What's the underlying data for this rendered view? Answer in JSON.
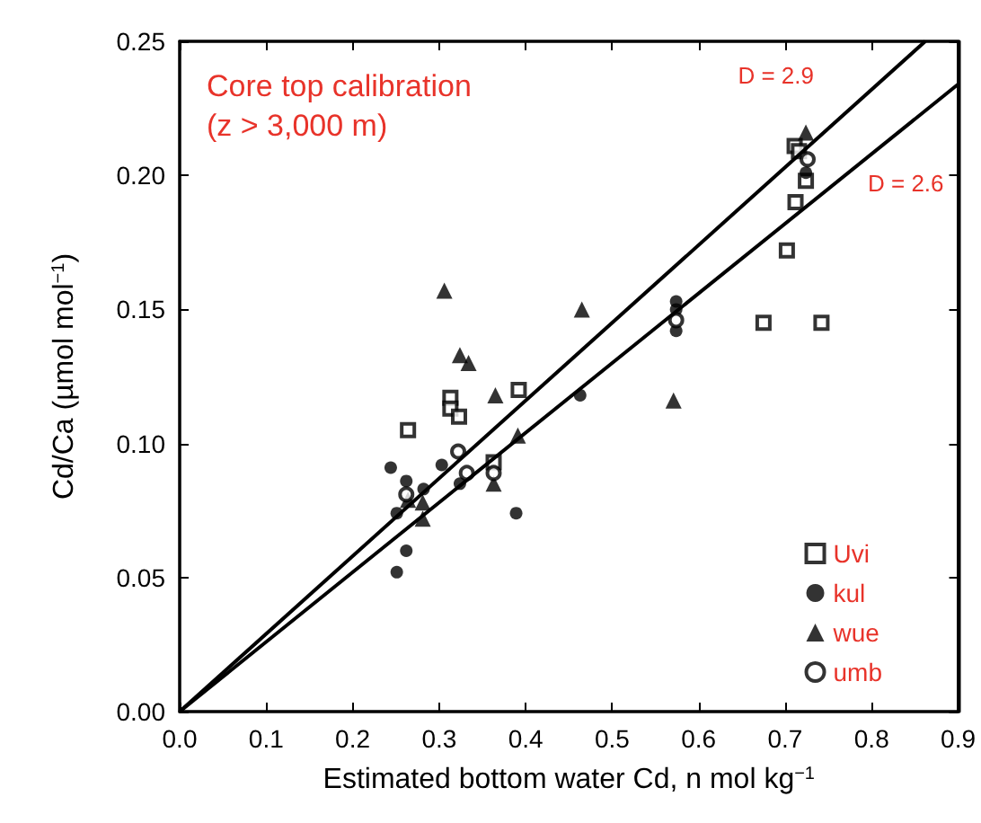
{
  "chart_data": {
    "type": "scatter",
    "title": "Core top calibration\n(z > 3,000 m)",
    "xlabel": "Estimated bottom water Cd, n mol kg$^{−1}$",
    "ylabel": "Cd/Ca (µmol mol$^{−1}$)",
    "xlim": [
      0,
      0.9
    ],
    "xticks": [
      {
        "value": 0,
        "label": "0.0"
      },
      0.1,
      0.2,
      0.3,
      0.4,
      0.5,
      0.6,
      0.7,
      0.8,
      0.9
    ],
    "ylim": [
      0,
      0.25
    ],
    "yticks": [
      {
        "value": 0,
        "label": "0.00"
      },
      0.05,
      {
        "value": 0.1,
        "label": "0.10"
      },
      0.15,
      {
        "value": 0.2,
        "label": "0.20"
      },
      0.25
    ],
    "grid": false,
    "legend": "bottom right",
    "annotations": [
      "D = 2.9",
      "D = 2.6"
    ],
    "series": [
      {
        "name": "Uvi",
        "color": "#000000",
        "marker": "square",
        "x": [
          0.392,
          0.313,
          0.313,
          0.323,
          0.264,
          0.363,
          0.711,
          0.716,
          0.724,
          0.712,
          0.702,
          0.675,
          0.742
        ],
        "values": [
          0.12,
          0.117,
          0.113,
          0.11,
          0.105,
          0.093,
          0.211,
          0.209,
          0.198,
          0.19,
          0.172,
          0.145,
          0.145
        ]
      },
      {
        "name": "kul",
        "color": "#000000",
        "marker": "circle",
        "x": [
          0.463,
          0.574,
          0.574,
          0.574,
          0.244,
          0.303,
          0.324,
          0.262,
          0.282,
          0.251,
          0.389,
          0.262,
          0.251,
          0.724
        ],
        "values": [
          0.118,
          0.153,
          0.15,
          0.142,
          0.091,
          0.092,
          0.085,
          0.086,
          0.083,
          0.074,
          0.074,
          0.06,
          0.052,
          0.201
        ]
      },
      {
        "name": "wue",
        "color": "#000000",
        "marker": "triangle",
        "x": [
          0.306,
          0.465,
          0.324,
          0.334,
          0.365,
          0.571,
          0.391,
          0.363,
          0.264,
          0.281,
          0.281,
          0.724
        ],
        "values": [
          0.157,
          0.15,
          0.133,
          0.13,
          0.118,
          0.116,
          0.103,
          0.085,
          0.079,
          0.078,
          0.072,
          0.216
        ]
      },
      {
        "name": "umb",
        "color": "#000000",
        "marker": "circle",
        "x": [
          0.574,
          0.322,
          0.332,
          0.363,
          0.262,
          0.726
        ],
        "values": [
          0.146,
          0.097,
          0.089,
          0.089,
          0.081,
          0.206
        ]
      },
      {
        "type": "line",
        "color": "#000000",
        "marker": "none",
        "x": [
          0,
          0.862
        ],
        "values": [
          0,
          0.25
        ]
      },
      {
        "type": "line",
        "color": "#000000",
        "marker": "none",
        "x": [
          0,
          0.9
        ],
        "values": [
          0,
          0.234
        ]
      }
    ]
  }
}
